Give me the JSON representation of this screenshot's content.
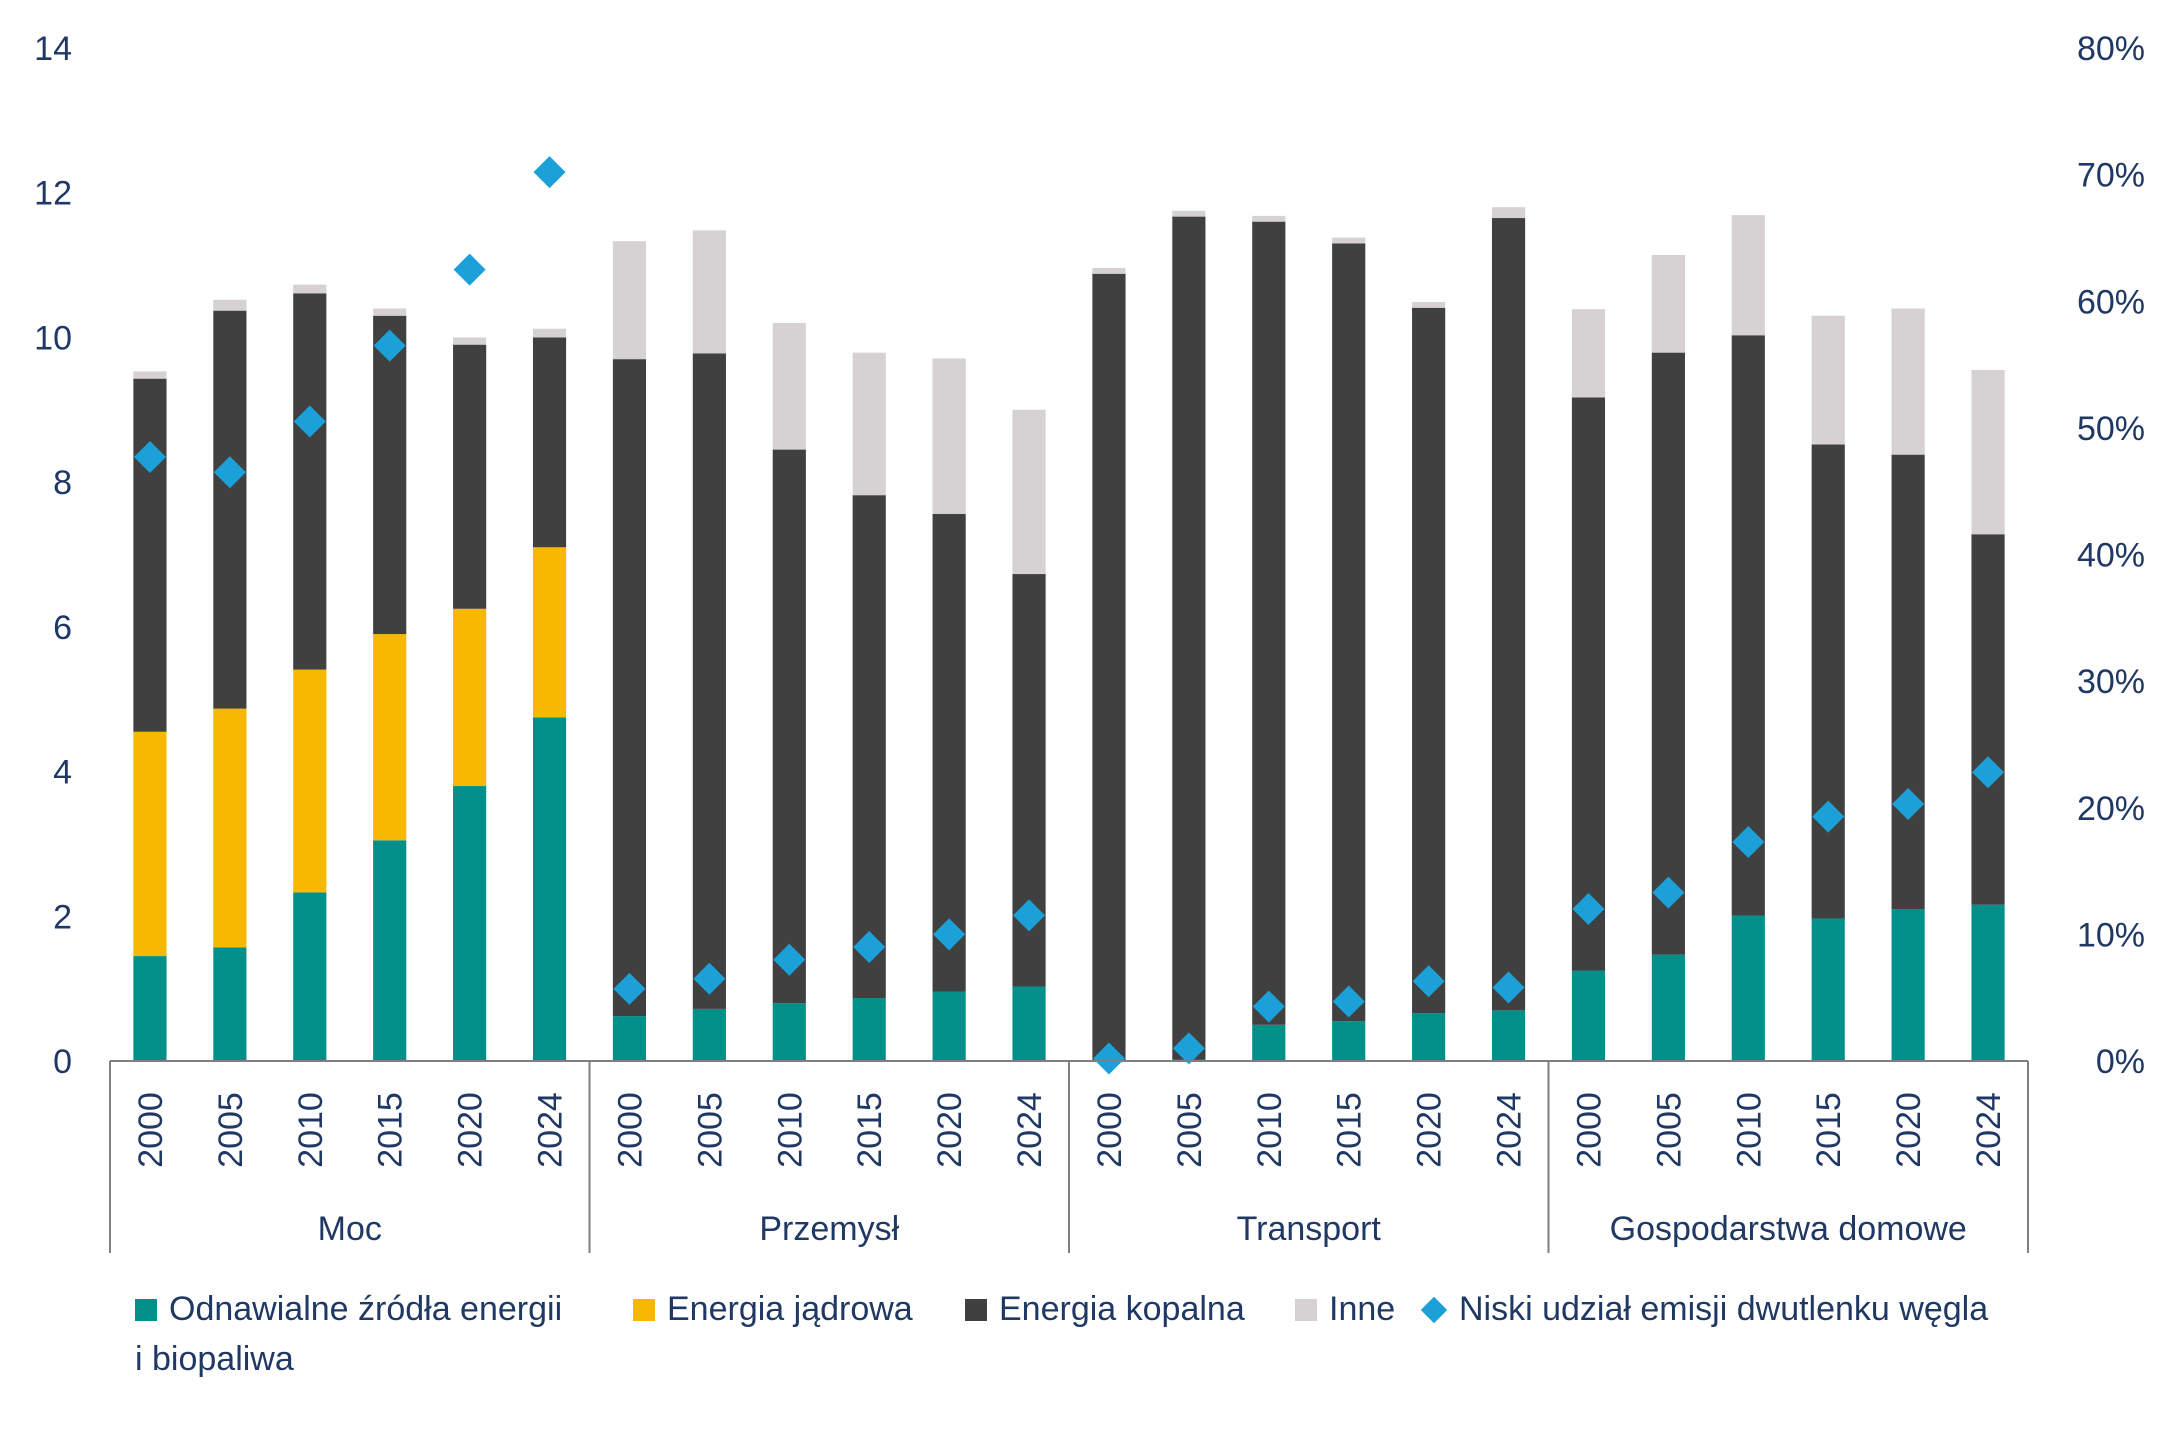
{
  "chart_data": {
    "type": "bar",
    "stacked": true,
    "groups": [
      {
        "name": "Moc",
        "years": [
          "2000",
          "2005",
          "2010",
          "2015",
          "2020",
          "2024"
        ]
      },
      {
        "name": "Przemysł",
        "years": [
          "2000",
          "2005",
          "2010",
          "2015",
          "2020",
          "2024"
        ]
      },
      {
        "name": "Transport",
        "years": [
          "2000",
          "2005",
          "2010",
          "2015",
          "2020",
          "2024"
        ]
      },
      {
        "name": "Gospodarstwa domowe",
        "years": [
          "2000",
          "2005",
          "2010",
          "2015",
          "2020",
          "2024"
        ]
      }
    ],
    "series": [
      {
        "name": "Odnawialne źródła energii i biopaliwa",
        "color": "#009089",
        "values": [
          1.45,
          1.57,
          2.33,
          3.05,
          3.8,
          4.75,
          0.62,
          0.72,
          0.8,
          0.87,
          0.96,
          1.03,
          0.0,
          0.02,
          0.5,
          0.55,
          0.66,
          0.7,
          1.25,
          1.47,
          2.01,
          1.97,
          2.1,
          2.16
        ]
      },
      {
        "name": "Energia jądrowa",
        "color": "#f6b800",
        "values": [
          3.1,
          3.3,
          3.08,
          2.85,
          2.45,
          2.35,
          0,
          0,
          0,
          0,
          0,
          0,
          0,
          0,
          0,
          0,
          0,
          0,
          0,
          0,
          0,
          0,
          0,
          0
        ]
      },
      {
        "name": "Energia kopalna",
        "color": "#404040",
        "values": [
          4.88,
          5.5,
          5.2,
          4.4,
          3.65,
          2.9,
          9.08,
          9.06,
          7.65,
          6.95,
          6.6,
          5.7,
          10.88,
          11.65,
          11.1,
          10.75,
          9.75,
          10.95,
          7.92,
          8.32,
          8.02,
          6.55,
          6.28,
          5.12
        ]
      },
      {
        "name": "Inne",
        "color": "#d6d1d2",
        "values": [
          0.1,
          0.15,
          0.12,
          0.1,
          0.1,
          0.12,
          1.63,
          1.7,
          1.75,
          1.97,
          2.15,
          2.27,
          0.08,
          0.08,
          0.08,
          0.08,
          0.08,
          0.15,
          1.22,
          1.35,
          1.66,
          1.78,
          2.02,
          2.27
        ]
      }
    ],
    "secondary_series": {
      "name": "Niski udział emisji dwutlenku węgla",
      "color": "#1ba1d8",
      "marker": "diamond",
      "values": [
        0.477,
        0.465,
        0.505,
        0.565,
        0.625,
        0.702,
        0.057,
        0.065,
        0.08,
        0.09,
        0.1,
        0.115,
        0.002,
        0.01,
        0.043,
        0.047,
        0.063,
        0.058,
        0.12,
        0.133,
        0.173,
        0.193,
        0.203,
        0.228
      ]
    },
    "y_left": {
      "min": 0,
      "max": 14,
      "ticks": [
        "0",
        "2",
        "4",
        "6",
        "8",
        "10",
        "12",
        "14"
      ]
    },
    "y_right": {
      "min": 0,
      "max": 0.8,
      "ticks": [
        "0%",
        "10%",
        "20%",
        "30%",
        "40%",
        "50%",
        "60%",
        "70%",
        "80%"
      ]
    },
    "grid": false,
    "legend_position": "bottom"
  },
  "legend": {
    "renewables": "Odnawialne źródła energii",
    "renewables_line2": "i biopaliwa",
    "nuclear": "Energia jądrowa",
    "fossil": "Energia kopalna",
    "other": "Inne",
    "lowcarbon": "Niski udział emisji dwutlenku węgla"
  }
}
